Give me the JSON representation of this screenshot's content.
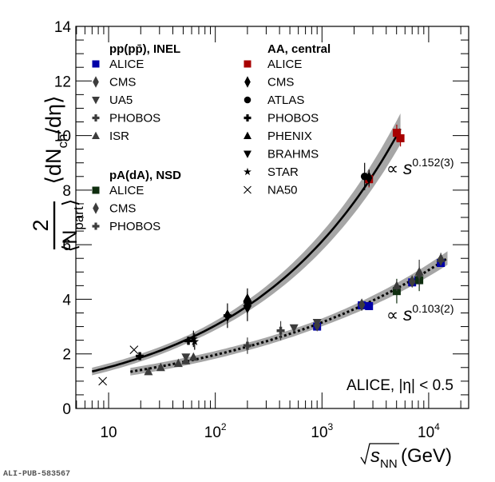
{
  "chart_data": {
    "type": "scatter",
    "xscale": "log",
    "xlim": [
      4.93,
      23700
    ],
    "ylim": [
      0,
      14
    ],
    "xlabel": "√s_NN (GeV)",
    "ylabel": "2/⟨N_part⟩ ⟨dN_ch/dη⟩",
    "yticks": [
      "0",
      "2",
      "4",
      "6",
      "8",
      "10",
      "12",
      "14"
    ],
    "xticks": [
      {
        "value": 10,
        "base": "10",
        "exp": ""
      },
      {
        "value": 100,
        "base": "10",
        "exp": "2"
      },
      {
        "value": 1000,
        "base": "10",
        "exp": "3"
      },
      {
        "value": 10000,
        "base": "10",
        "exp": "4"
      }
    ],
    "annotation": "ALICE, |η| < 0.5",
    "fits": [
      {
        "name": "AA power law",
        "label_prefix": "∝ s",
        "label_exp": "0.152(3)",
        "style": "solid",
        "exponent": 0.152,
        "x_range": [
          7.0,
          5440
        ],
        "anchor": {
          "x": 5020,
          "y": 10.0
        },
        "band_rel": 0.055
      },
      {
        "name": "pp/pA power law",
        "label_prefix": "∝ s",
        "label_exp": "0.103(2)",
        "style": "dotted",
        "exponent": 0.103,
        "x_range": [
          16,
          15000
        ],
        "anchor": {
          "x": 13000,
          "y": 5.35
        },
        "band_rel": 0.045
      }
    ],
    "legend_groups": [
      {
        "title": "pp(pp̄), INEL",
        "entries": [
          {
            "label": "ALICE",
            "marker": "square",
            "color": "#0000a8"
          },
          {
            "label": "CMS",
            "marker": "diamond",
            "color": "#3c3c3c"
          },
          {
            "label": "UA5",
            "marker": "triangle-down",
            "color": "#3c3c3c"
          },
          {
            "label": "PHOBOS",
            "marker": "cross",
            "color": "#3c3c3c"
          },
          {
            "label": "ISR",
            "marker": "triangle-up",
            "color": "#3c3c3c"
          }
        ]
      },
      {
        "title": "pA(dA), NSD",
        "entries": [
          {
            "label": "ALICE",
            "marker": "square",
            "color": "#0f2e0f"
          },
          {
            "label": "CMS",
            "marker": "diamond",
            "color": "#3c3c3c"
          },
          {
            "label": "PHOBOS",
            "marker": "cross",
            "color": "#3c3c3c"
          }
        ]
      },
      {
        "title": "AA, central",
        "entries": [
          {
            "label": "ALICE",
            "marker": "square",
            "color": "#a80000"
          },
          {
            "label": "CMS",
            "marker": "diamond",
            "color": "#000000"
          },
          {
            "label": "ATLAS",
            "marker": "circle",
            "color": "#000000"
          },
          {
            "label": "PHOBOS",
            "marker": "cross",
            "color": "#000000"
          },
          {
            "label": "PHENIX",
            "marker": "triangle-up",
            "color": "#000000"
          },
          {
            "label": "BRAHMS",
            "marker": "triangle-down",
            "color": "#000000"
          },
          {
            "label": "STAR",
            "marker": "star",
            "color": "#000000"
          },
          {
            "label": "NA50",
            "marker": "x",
            "color": "#000000"
          }
        ]
      }
    ],
    "series": [
      {
        "name": "pp ALICE",
        "marker": "square",
        "color": "#0000a8",
        "points": [
          [
            900,
            3.0,
            0.1
          ],
          [
            2360,
            3.78,
            0.15
          ],
          [
            2760,
            3.75,
            0.1
          ],
          [
            7000,
            4.62,
            0.15
          ],
          [
            8000,
            4.7,
            0.15
          ],
          [
            13000,
            5.33,
            0.1
          ]
        ]
      },
      {
        "name": "pp CMS",
        "marker": "diamond",
        "color": "#3c3c3c",
        "points": [
          [
            900,
            3.05,
            0.1
          ],
          [
            2360,
            3.8,
            0.1
          ],
          [
            7000,
            4.65,
            0.1
          ],
          [
            13000,
            5.45,
            0.1
          ]
        ]
      },
      {
        "name": "pp UA5",
        "marker": "triangle-down",
        "color": "#3c3c3c",
        "points": [
          [
            53,
            1.88,
            0.1
          ],
          [
            546,
            2.95,
            0.1
          ],
          [
            900,
            3.15,
            0.1
          ]
        ]
      },
      {
        "name": "pp PHOBOS",
        "marker": "cross",
        "color": "#3c3c3c",
        "points": [
          [
            410,
            2.85,
            0.35
          ]
        ]
      },
      {
        "name": "pp ISR",
        "marker": "triangle-up",
        "color": "#3c3c3c",
        "points": [
          [
            23.6,
            1.35,
            0.05
          ],
          [
            30.8,
            1.5,
            0.05
          ],
          [
            45,
            1.65,
            0.05
          ],
          [
            53,
            1.75,
            0.05
          ],
          [
            62.4,
            1.88,
            0.05
          ]
        ]
      },
      {
        "name": "pA ALICE",
        "marker": "square",
        "color": "#0f2e0f",
        "points": [
          [
            5020,
            4.3,
            0.45
          ],
          [
            8160,
            4.7,
            0.4
          ]
        ]
      },
      {
        "name": "pA CMS",
        "marker": "diamond",
        "color": "#3c3c3c",
        "points": [
          [
            8160,
            4.95,
            0.5
          ]
        ]
      },
      {
        "name": "pA PHOBOS",
        "marker": "cross",
        "color": "#3c3c3c",
        "points": [
          [
            200,
            2.3,
            0.3
          ]
        ]
      },
      {
        "name": "pA PHENIX",
        "marker": "triangle-up",
        "color": "#3c3c3c",
        "points": [
          [
            5020,
            4.5,
            0.2
          ],
          [
            8160,
            5.0,
            0.2
          ],
          [
            13000,
            5.5,
            0.2
          ]
        ]
      },
      {
        "name": "AA ALICE",
        "marker": "square",
        "color": "#a80000",
        "points": [
          [
            2760,
            8.4,
            0.3
          ],
          [
            5020,
            10.1,
            0.3
          ],
          [
            5440,
            9.9,
            0.3
          ]
        ]
      },
      {
        "name": "AA CMS",
        "marker": "diamond",
        "color": "#000000",
        "points": [
          [
            130,
            3.4,
            0.45
          ],
          [
            200,
            3.8,
            0.6
          ],
          [
            2760,
            8.45,
            0.3
          ]
        ]
      },
      {
        "name": "AA ATLAS",
        "marker": "circle",
        "color": "#000000",
        "points": [
          [
            2510,
            8.5,
            0.5
          ]
        ]
      },
      {
        "name": "AA PHOBOS",
        "marker": "cross",
        "color": "#000000",
        "points": [
          [
            19.6,
            1.92,
            0.1
          ],
          [
            56,
            2.48,
            0.15
          ],
          [
            130,
            3.4,
            0.2
          ],
          [
            200,
            3.9,
            0.2
          ]
        ]
      },
      {
        "name": "AA PHENIX",
        "marker": "triangle-up",
        "color": "#000000",
        "points": [
          [
            200,
            4.05,
            0.2
          ]
        ]
      },
      {
        "name": "AA BRAHMS",
        "marker": "triangle-down",
        "color": "#000000",
        "points": [
          [
            200,
            3.65,
            0.2
          ]
        ]
      },
      {
        "name": "AA STAR",
        "marker": "star",
        "color": "#000000",
        "points": [
          [
            62.4,
            2.55,
            0.3
          ],
          [
            64,
            2.45,
            0.3
          ]
        ]
      },
      {
        "name": "AA NA50",
        "marker": "x",
        "color": "#000000",
        "points": [
          [
            8.8,
            1.0,
            0.0
          ],
          [
            17.3,
            2.15,
            0.0
          ]
        ]
      }
    ]
  },
  "footer": {
    "pub_id": "ALI-PUB-583567"
  }
}
